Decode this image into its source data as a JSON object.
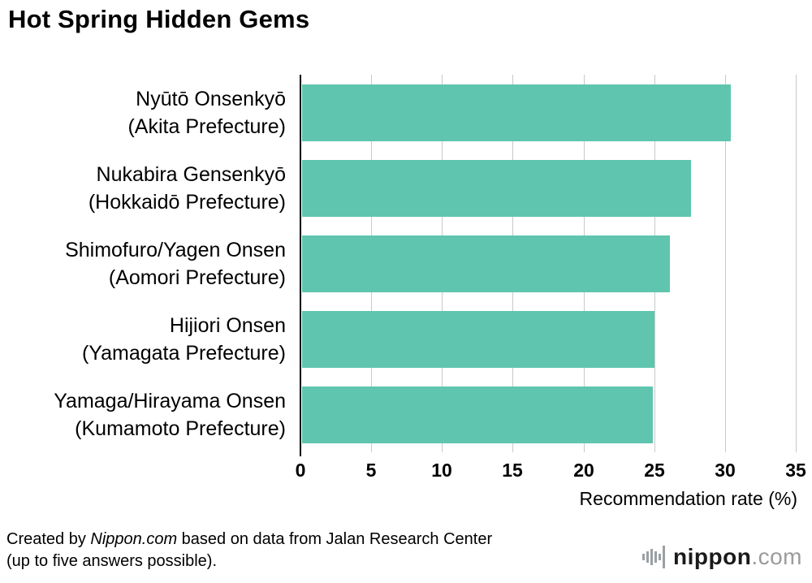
{
  "title": "Hot Spring Hidden Gems",
  "chart_data": {
    "type": "bar",
    "orientation": "horizontal",
    "categories": [
      [
        "Nyūtō Onsenkyō",
        "(Akita Prefecture)"
      ],
      [
        "Nukabira Gensenkyō",
        "(Hokkaidō Prefecture)"
      ],
      [
        "Shimofuro/Yagen Onsen",
        "(Aomori Prefecture)"
      ],
      [
        "Hijiori Onsen",
        "(Yamagata Prefecture)"
      ],
      [
        "Yamaga/Hirayama Onsen",
        "(Kumamoto Prefecture)"
      ]
    ],
    "values": [
      30.3,
      27.5,
      26.0,
      24.9,
      24.8
    ],
    "xlabel": "Recommendation rate (%)",
    "xlim": [
      0,
      35
    ],
    "xticks": [
      0,
      5,
      10,
      15,
      20,
      25,
      30,
      35
    ],
    "bar_color": "#5fc5af",
    "gridline_color": "#c9c9c9",
    "grid": true,
    "legend": "none"
  },
  "footer": {
    "credit_prefix": "Created by ",
    "credit_source": "Nippon.com",
    "credit_suffix": " based on data from Jalan Research Center",
    "credit_line2": "(up to five answers possible).",
    "logo_name": "nippon",
    "logo_tld": ".com"
  }
}
